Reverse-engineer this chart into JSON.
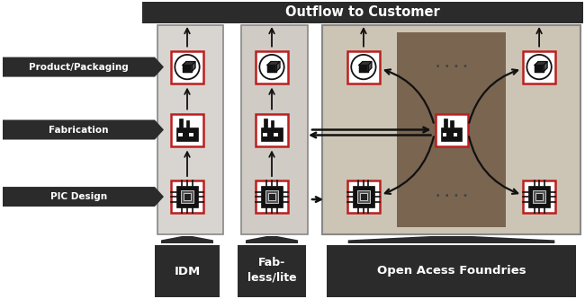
{
  "title": "Outflow to Customer",
  "title_bg": "#2b2b2b",
  "title_color": "#ffffff",
  "left_labels": [
    "Product/Packaging",
    "Fabrication",
    "PIC Design"
  ],
  "bottom_labels_idm": "IDM",
  "bottom_labels_fab": "Fab-\nless/lite",
  "bottom_labels_open": "Open Acess Foundries",
  "bg_color": "#ffffff",
  "col_bg_idm": "#d8d5d0",
  "col_bg_fabless": "#d0ccc5",
  "col_bg_open": "#ccc5b5",
  "open_center_bg": "#7a6550",
  "box_border": "#bb2020",
  "box_fill": "#ffffff",
  "arrow_color": "#111111",
  "label_bg": "#2b2b2b",
  "label_color": "#ffffff",
  "dot_color": "#333333",
  "col_border": "#888888"
}
